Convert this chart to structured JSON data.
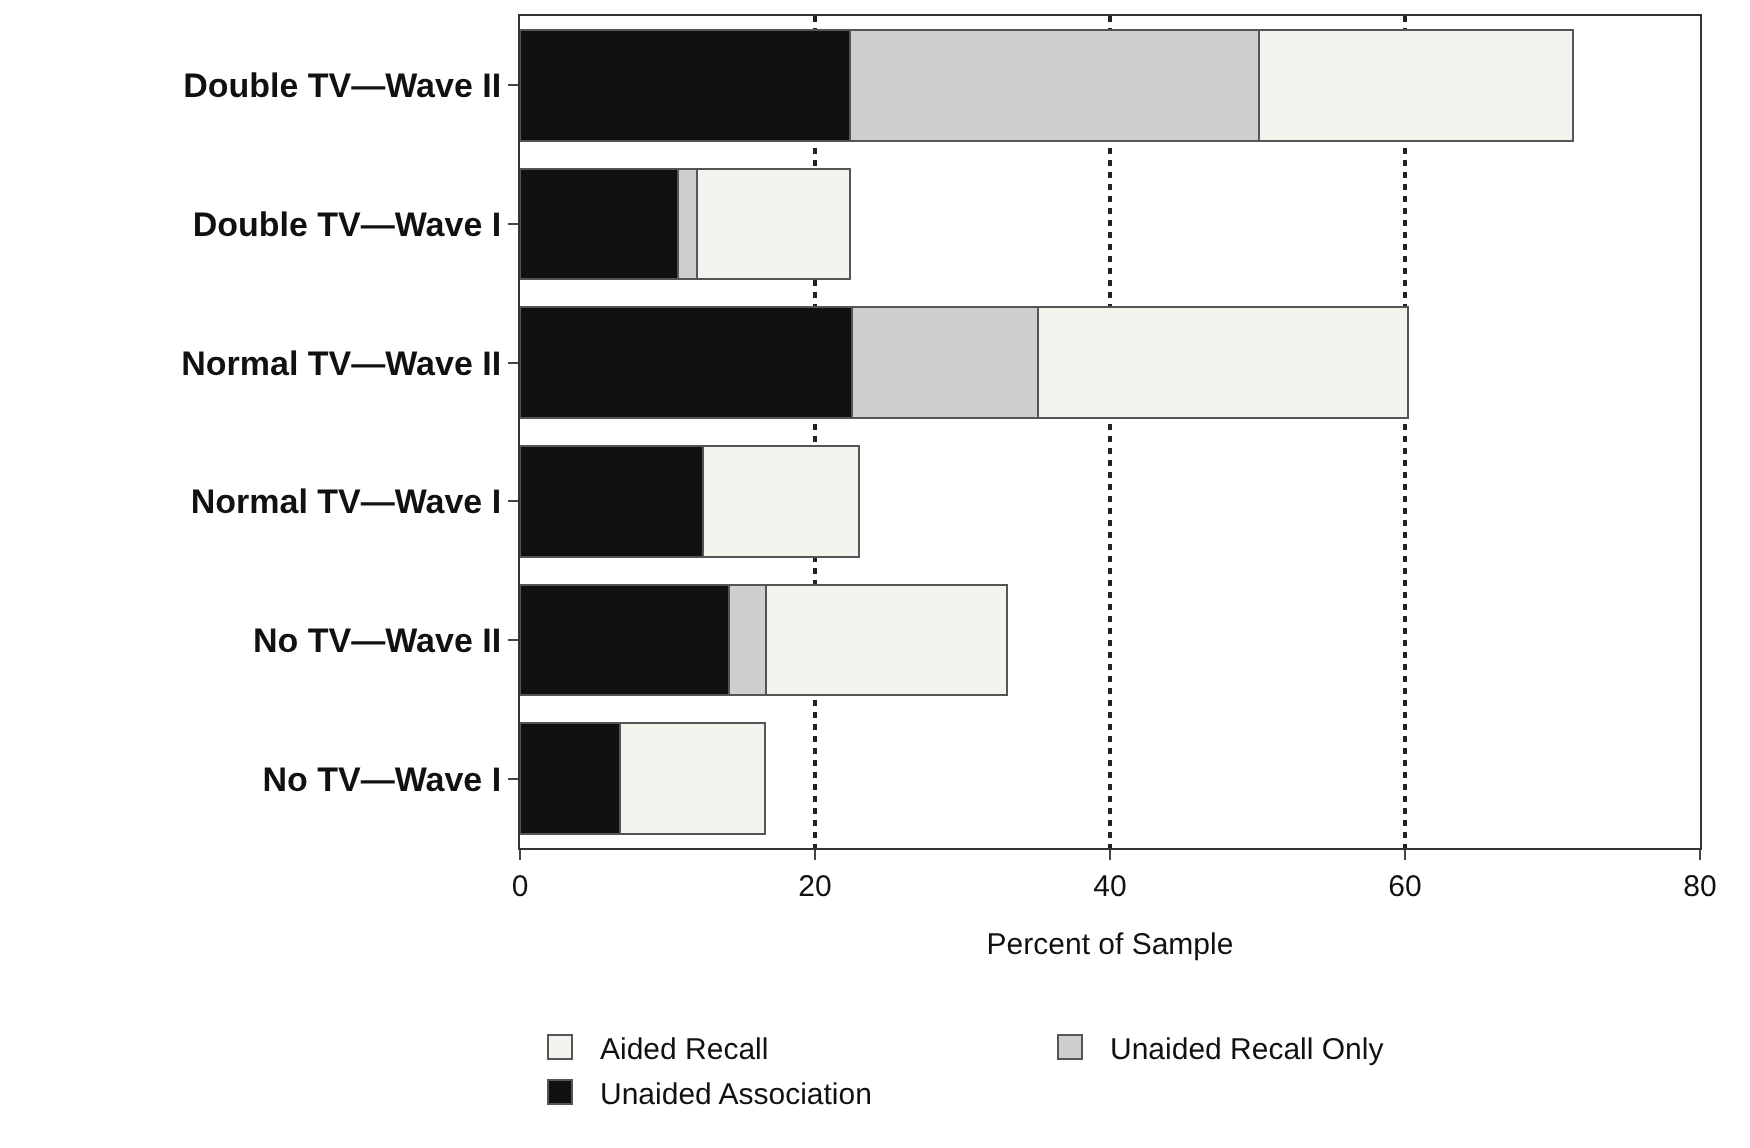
{
  "chart_data": {
    "type": "bar",
    "orientation": "horizontal",
    "stacked": true,
    "categories": [
      "Double TV—Wave II",
      "Double TV—Wave I",
      "Normal TV—Wave II",
      "Normal TV—Wave I",
      "No TV—Wave II",
      "No TV—Wave I"
    ],
    "series": [
      {
        "name": "Unaided Association",
        "color": "#111111",
        "values": [
          22.4,
          10.7,
          22.5,
          12.4,
          14.2,
          6.8
        ]
      },
      {
        "name": "Unaided Recall Only",
        "color": "#cfcfcf",
        "values": [
          27.7,
          1.3,
          12.6,
          0,
          2.5,
          0
        ]
      },
      {
        "name": "Aided Recall",
        "color": "#f3f3ee",
        "values": [
          21.3,
          10.4,
          25.1,
          10.6,
          16.3,
          9.8
        ]
      }
    ],
    "xlabel": "Percent of Sample",
    "xlim": [
      0,
      80
    ],
    "xticks": [
      0,
      20,
      40,
      60,
      80
    ],
    "grid": "x",
    "legend": "bottom"
  }
}
